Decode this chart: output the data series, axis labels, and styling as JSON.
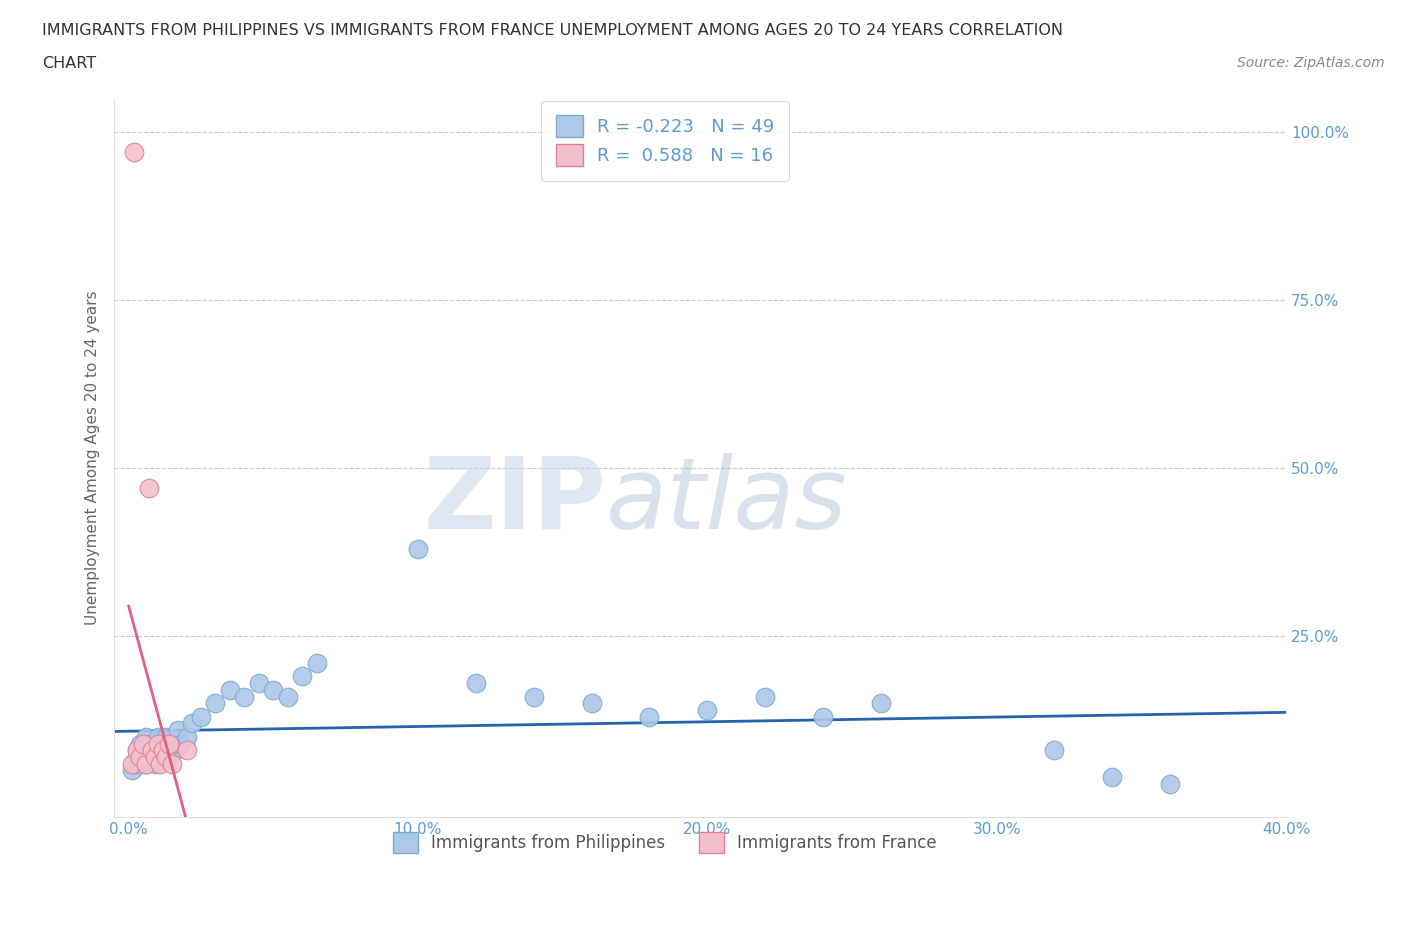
{
  "title_line1": "IMMIGRANTS FROM PHILIPPINES VS IMMIGRANTS FROM FRANCE UNEMPLOYMENT AMONG AGES 20 TO 24 YEARS CORRELATION",
  "title_line2": "CHART",
  "source": "Source: ZipAtlas.com",
  "ylabel": "Unemployment Among Ages 20 to 24 years",
  "series": [
    {
      "name": "Immigrants from Philippines",
      "color_fill": "#adc8e8",
      "color_edge": "#7aaad0",
      "R": -0.223,
      "N": 49,
      "trend_color": "#2563b0",
      "trend_linestyle": "solid",
      "points_x": [
        0.001,
        0.002,
        0.003,
        0.003,
        0.004,
        0.004,
        0.005,
        0.005,
        0.006,
        0.006,
        0.007,
        0.007,
        0.008,
        0.008,
        0.009,
        0.009,
        0.01,
        0.01,
        0.011,
        0.012,
        0.013,
        0.014,
        0.015,
        0.016,
        0.017,
        0.018,
        0.02,
        0.022,
        0.025,
        0.03,
        0.035,
        0.04,
        0.045,
        0.05,
        0.055,
        0.06,
        0.065,
        0.1,
        0.12,
        0.14,
        0.16,
        0.18,
        0.2,
        0.22,
        0.24,
        0.26,
        0.32,
        0.34,
        0.36
      ],
      "points_y": [
        0.05,
        0.06,
        0.07,
        0.08,
        0.06,
        0.09,
        0.07,
        0.08,
        0.06,
        0.1,
        0.07,
        0.09,
        0.08,
        0.07,
        0.09,
        0.06,
        0.08,
        0.1,
        0.09,
        0.08,
        0.1,
        0.07,
        0.09,
        0.08,
        0.11,
        0.09,
        0.1,
        0.12,
        0.13,
        0.15,
        0.17,
        0.16,
        0.18,
        0.17,
        0.16,
        0.19,
        0.21,
        0.38,
        0.18,
        0.16,
        0.15,
        0.13,
        0.14,
        0.16,
        0.13,
        0.15,
        0.08,
        0.04,
        0.03
      ]
    },
    {
      "name": "Immigrants from France",
      "color_fill": "#f5c0ce",
      "color_edge": "#e08098",
      "R": 0.588,
      "N": 16,
      "trend_color": "#e06080",
      "trend_linestyle": "solid",
      "points_x": [
        0.001,
        0.002,
        0.003,
        0.004,
        0.005,
        0.006,
        0.007,
        0.008,
        0.009,
        0.01,
        0.011,
        0.012,
        0.013,
        0.014,
        0.015,
        0.02
      ],
      "points_y": [
        0.06,
        0.97,
        0.08,
        0.07,
        0.09,
        0.06,
        0.47,
        0.08,
        0.07,
        0.09,
        0.06,
        0.08,
        0.07,
        0.09,
        0.06,
        0.08
      ]
    }
  ],
  "xlim": [
    -0.005,
    0.4
  ],
  "ylim": [
    -0.02,
    1.05
  ],
  "xticks": [
    0.0,
    0.1,
    0.2,
    0.3,
    0.4
  ],
  "xtick_labels": [
    "0.0%",
    "10.0%",
    "20.0%",
    "30.0%",
    "40.0%"
  ],
  "yticks_right": [
    0.25,
    0.5,
    0.75,
    1.0
  ],
  "ytick_labels_right": [
    "25.0%",
    "50.0%",
    "75.0%",
    "100.0%"
  ],
  "grid_color": "#cccccc",
  "background_color": "#ffffff",
  "watermark_color": "#c8d8ea",
  "tick_color": "#5b9bd5",
  "label_color": "#666666"
}
